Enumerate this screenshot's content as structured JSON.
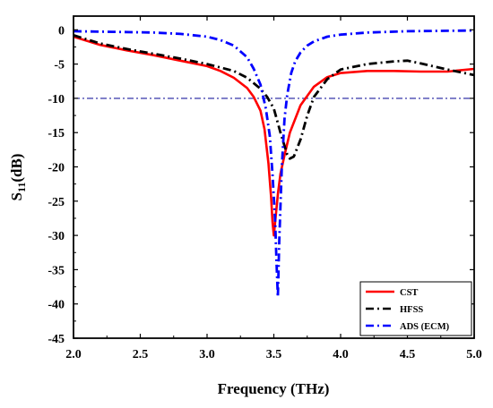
{
  "chart_data": {
    "type": "line",
    "xlabel": "Frequency (THz)",
    "ylabel": "S11(dB)",
    "xlim": [
      2.0,
      5.0
    ],
    "ylim": [
      -45,
      2
    ],
    "x_ticks": [
      "2.0",
      "2.5",
      "3.0",
      "3.5",
      "4.0",
      "4.5",
      "5.0"
    ],
    "y_ticks": [
      "0",
      "-5",
      "-10",
      "-15",
      "-20",
      "-25",
      "-30",
      "-35",
      "-40",
      "-45"
    ],
    "reference_line": {
      "y": -10
    },
    "legend_position": "bottom-right",
    "series": [
      {
        "name": "CST",
        "color": "#ff0000",
        "style": "solid",
        "x": [
          2.0,
          2.2,
          2.4,
          2.6,
          2.8,
          3.0,
          3.1,
          3.2,
          3.3,
          3.35,
          3.4,
          3.43,
          3.46,
          3.48,
          3.49,
          3.5,
          3.51,
          3.53,
          3.55,
          3.58,
          3.62,
          3.7,
          3.8,
          3.9,
          4.0,
          4.2,
          4.4,
          4.6,
          4.8,
          5.0
        ],
        "y": [
          -1.0,
          -2.2,
          -3.0,
          -3.7,
          -4.5,
          -5.3,
          -6.0,
          -7.0,
          -8.5,
          -9.8,
          -11.8,
          -14.5,
          -19.5,
          -24.5,
          -28.0,
          -30.0,
          -28.0,
          -24.0,
          -21.0,
          -18.3,
          -15.0,
          -11.0,
          -8.3,
          -6.9,
          -6.3,
          -6.0,
          -6.0,
          -6.1,
          -6.1,
          -5.7
        ]
      },
      {
        "name": "HFSS",
        "color": "#000000",
        "style": "dashdot",
        "x": [
          2.0,
          2.2,
          2.4,
          2.6,
          2.8,
          3.0,
          3.2,
          3.3,
          3.4,
          3.45,
          3.5,
          3.55,
          3.6,
          3.62,
          3.65,
          3.7,
          3.75,
          3.8,
          3.9,
          4.0,
          4.2,
          4.4,
          4.5,
          4.6,
          4.8,
          5.0
        ],
        "y": [
          -0.8,
          -2.0,
          -2.8,
          -3.5,
          -4.2,
          -5.0,
          -6.0,
          -7.0,
          -8.6,
          -9.8,
          -11.5,
          -15.0,
          -18.2,
          -18.8,
          -18.5,
          -16.0,
          -12.5,
          -9.8,
          -7.2,
          -5.8,
          -5.0,
          -4.6,
          -4.5,
          -4.9,
          -5.8,
          -6.6
        ]
      },
      {
        "name": "ADS (ECM)",
        "color": "#0000ff",
        "style": "dashdot",
        "x": [
          2.0,
          2.3,
          2.6,
          2.8,
          3.0,
          3.1,
          3.2,
          3.3,
          3.35,
          3.4,
          3.44,
          3.47,
          3.49,
          3.51,
          3.52,
          3.53,
          3.54,
          3.56,
          3.58,
          3.6,
          3.63,
          3.66,
          3.7,
          3.75,
          3.8,
          3.9,
          4.0,
          4.2,
          4.5,
          5.0
        ],
        "y": [
          -0.2,
          -0.3,
          -0.4,
          -0.6,
          -1.0,
          -1.5,
          -2.3,
          -4.0,
          -5.7,
          -8.0,
          -11.5,
          -15.5,
          -21.0,
          -28.0,
          -34.0,
          -39.0,
          -31.0,
          -20.0,
          -13.0,
          -9.5,
          -6.3,
          -4.6,
          -3.3,
          -2.3,
          -1.7,
          -1.0,
          -0.7,
          -0.4,
          -0.2,
          -0.1
        ]
      }
    ]
  }
}
